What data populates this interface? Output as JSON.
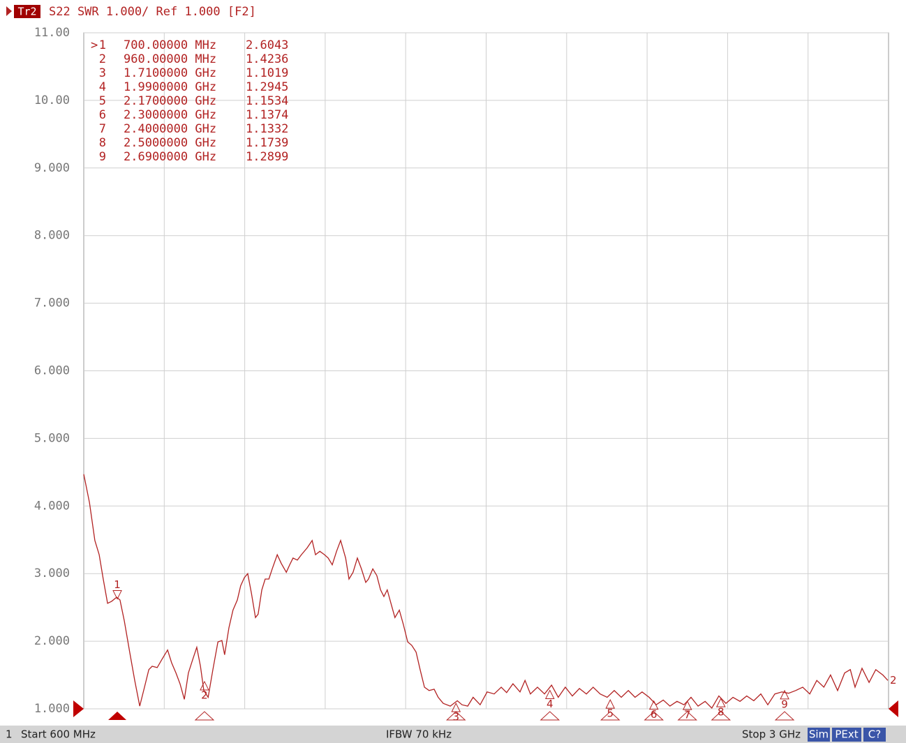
{
  "chart_data": {
    "type": "line",
    "header": {
      "trace": "Tr2",
      "text": "S22 SWR 1.000/ Ref 1.000 [F2]"
    },
    "x": [
      600,
      617,
      633,
      646,
      658,
      671,
      683,
      698,
      708,
      721,
      737,
      752,
      767,
      781,
      794,
      804,
      819,
      833,
      850,
      862,
      875,
      887,
      900,
      912,
      925,
      937,
      948,
      958,
      971,
      985,
      1000,
      1012,
      1020,
      1033,
      1045,
      1058,
      1068,
      1079,
      1089,
      1100,
      1112,
      1120,
      1131,
      1141,
      1152,
      1162,
      1177,
      1189,
      1204,
      1214,
      1224,
      1237,
      1249,
      1266,
      1281,
      1291,
      1304,
      1318,
      1329,
      1341,
      1354,
      1366,
      1381,
      1391,
      1403,
      1416,
      1428,
      1441,
      1449,
      1462,
      1474,
      1485,
      1495,
      1505,
      1516,
      1528,
      1541,
      1553,
      1566,
      1578,
      1591,
      1603,
      1616,
      1630,
      1645,
      1657,
      1672,
      1693,
      1714,
      1728,
      1745,
      1761,
      1782,
      1803,
      1824,
      1845,
      1861,
      1880,
      1901,
      1916,
      1932,
      1953,
      1974,
      1995,
      2015,
      2036,
      2057,
      2078,
      2099,
      2119,
      2140,
      2161,
      2182,
      2203,
      2224,
      2244,
      2265,
      2286,
      2307,
      2328,
      2348,
      2369,
      2390,
      2411,
      2432,
      2453,
      2473,
      2494,
      2515,
      2536,
      2557,
      2577,
      2598,
      2619,
      2640,
      2661,
      2682,
      2702,
      2723,
      2744,
      2765,
      2786,
      2807,
      2827,
      2848,
      2869,
      2886,
      2900,
      2921,
      2942,
      2962,
      2983,
      2998
    ],
    "series": [
      {
        "name": "2",
        "color": "#b22222",
        "values": [
          4.47,
          4.05,
          3.49,
          3.28,
          2.92,
          2.56,
          2.59,
          2.65,
          2.61,
          2.3,
          1.84,
          1.42,
          1.04,
          1.32,
          1.58,
          1.63,
          1.61,
          1.73,
          1.87,
          1.68,
          1.53,
          1.37,
          1.14,
          1.53,
          1.73,
          1.91,
          1.63,
          1.27,
          1.17,
          1.58,
          1.99,
          2.01,
          1.8,
          2.2,
          2.46,
          2.61,
          2.82,
          2.94,
          3.0,
          2.71,
          2.35,
          2.4,
          2.76,
          2.92,
          2.92,
          3.07,
          3.28,
          3.15,
          3.02,
          3.13,
          3.23,
          3.2,
          3.28,
          3.38,
          3.49,
          3.28,
          3.33,
          3.28,
          3.23,
          3.13,
          3.33,
          3.49,
          3.23,
          2.92,
          3.02,
          3.23,
          3.07,
          2.87,
          2.92,
          3.07,
          2.97,
          2.76,
          2.66,
          2.76,
          2.56,
          2.35,
          2.46,
          2.25,
          1.99,
          1.94,
          1.84,
          1.58,
          1.32,
          1.27,
          1.29,
          1.17,
          1.08,
          1.04,
          1.12,
          1.06,
          1.04,
          1.17,
          1.06,
          1.25,
          1.22,
          1.32,
          1.24,
          1.37,
          1.25,
          1.42,
          1.22,
          1.32,
          1.22,
          1.35,
          1.17,
          1.32,
          1.19,
          1.3,
          1.22,
          1.32,
          1.22,
          1.17,
          1.27,
          1.17,
          1.27,
          1.17,
          1.25,
          1.17,
          1.06,
          1.13,
          1.04,
          1.11,
          1.06,
          1.17,
          1.04,
          1.11,
          1.01,
          1.19,
          1.08,
          1.17,
          1.11,
          1.19,
          1.12,
          1.22,
          1.06,
          1.22,
          1.25,
          1.23,
          1.27,
          1.32,
          1.22,
          1.42,
          1.32,
          1.5,
          1.27,
          1.53,
          1.58,
          1.32,
          1.6,
          1.39,
          1.58,
          1.5,
          1.42
        ]
      }
    ],
    "xlim": [
      600,
      3000
    ],
    "ylim": [
      1,
      11
    ],
    "yticks": [
      {
        "value": 11,
        "label": "11.00"
      },
      {
        "value": 10,
        "label": "10.00"
      },
      {
        "value": 9,
        "label": "9.000"
      },
      {
        "value": 8,
        "label": "8.000"
      },
      {
        "value": 7,
        "label": "7.000"
      },
      {
        "value": 6,
        "label": "6.000"
      },
      {
        "value": 5,
        "label": "5.000"
      },
      {
        "value": 4,
        "label": "4.000"
      },
      {
        "value": 3,
        "label": "3.000"
      },
      {
        "value": 2,
        "label": "2.000"
      },
      {
        "value": 1,
        "label": "1.000"
      }
    ],
    "grid": true,
    "active_marker_symbol": ">",
    "markers": [
      {
        "name": "1",
        "x": 700,
        "x_label": "700.00000 MHz",
        "y": 2.6043
      },
      {
        "name": "2",
        "x": 960,
        "x_label": "960.00000 MHz",
        "y": 1.4236
      },
      {
        "name": "3",
        "x": 1710,
        "x_label": "1.7100000 GHz",
        "y": 1.1019
      },
      {
        "name": "4",
        "x": 1990,
        "x_label": "1.9900000 GHz",
        "y": 1.2945
      },
      {
        "name": "5",
        "x": 2170,
        "x_label": "2.1700000 GHz",
        "y": 1.1534
      },
      {
        "name": "6",
        "x": 2300,
        "x_label": "2.3000000 GHz",
        "y": 1.1374
      },
      {
        "name": "7",
        "x": 2400,
        "x_label": "2.4000000 GHz",
        "y": 1.1332
      },
      {
        "name": "8",
        "x": 2500,
        "x_label": "2.5000000 GHz",
        "y": 1.1739
      },
      {
        "name": "9",
        "x": 2690,
        "x_label": "2.6900000 GHz",
        "y": 1.2899
      }
    ],
    "footer": {
      "channel": "1",
      "start": "Start 600 MHz",
      "ifbw": "IFBW 70 kHz",
      "stop": "Stop 3 GHz",
      "buttons": [
        "Sim",
        "PExt",
        "C?"
      ]
    }
  }
}
